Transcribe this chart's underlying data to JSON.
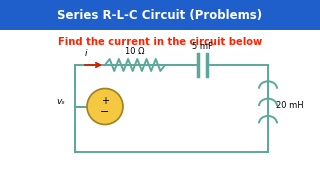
{
  "title": "Series R-L-C Circuit (Problems)",
  "subtitle": "Find the current in the circuit below",
  "title_bg": "#1E5FCC",
  "title_fg": "#FFFFFF",
  "subtitle_fg": "#FF2200",
  "circuit_color": "#5BA89A",
  "wire_color": "#4A4A4A",
  "resistor_label": "10 Ω",
  "capacitor_label": "5 mF",
  "inductor_label": "20 mH",
  "current_label": "i",
  "source_label": "vₛ",
  "bg_color": "#FFFFFF",
  "arrow_color": "#CC2200"
}
